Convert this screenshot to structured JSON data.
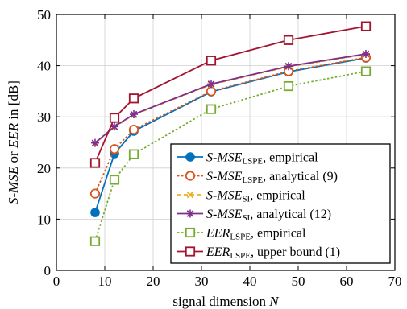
{
  "chart_data": {
    "type": "line",
    "xlabel_text": "signal dimension ",
    "xlabel_var": "N",
    "ylabel_parts": [
      {
        "text": "S-MSE",
        "italic": true
      },
      {
        "text": " or ",
        "italic": false
      },
      {
        "text": "EER",
        "italic": true
      },
      {
        "text": " in [dB]",
        "italic": false
      }
    ],
    "xlim": [
      0,
      70
    ],
    "ylim": [
      0,
      50
    ],
    "xticks": [
      0,
      10,
      20,
      30,
      40,
      50,
      60,
      70
    ],
    "yticks": [
      0,
      10,
      20,
      30,
      40,
      50
    ],
    "grid": true,
    "legend_position": "bottom-right",
    "series": [
      {
        "name_main": "S-MSE",
        "name_sub": "LSPE",
        "name_rest": ", empirical",
        "color": "#0072BD",
        "marker": "circle-filled",
        "dash": "solid",
        "x": [
          8,
          12,
          16,
          32,
          48,
          64
        ],
        "y": [
          11.3,
          22.8,
          27.2,
          34.9,
          38.8,
          41.5
        ]
      },
      {
        "name_main": "S-MSE",
        "name_sub": "LSPE",
        "name_rest": ", analytical (9)",
        "color": "#D95319",
        "marker": "circle-open",
        "dash": "dotted",
        "x": [
          8,
          12,
          16,
          32,
          48,
          64
        ],
        "y": [
          15.0,
          23.7,
          27.5,
          35.0,
          38.9,
          41.6
        ]
      },
      {
        "name_main": "S-MSE",
        "name_sub": "SI",
        "name_rest": ", empirical",
        "color": "#EDB120",
        "marker": "x",
        "dash": "dashed",
        "x": [
          8,
          12,
          16,
          32,
          48,
          64
        ],
        "y": [
          24.8,
          28.0,
          30.4,
          36.3,
          39.8,
          42.2
        ]
      },
      {
        "name_main": "S-MSE",
        "name_sub": "SI",
        "name_rest": ", analytical (12)",
        "color": "#7E2F8E",
        "marker": "star",
        "dash": "solid",
        "x": [
          8,
          12,
          16,
          32,
          48,
          64
        ],
        "y": [
          24.9,
          28.1,
          30.5,
          36.4,
          39.9,
          42.3
        ]
      },
      {
        "name_main": "EER",
        "name_sub": "LSPE",
        "name_rest": ", empirical",
        "color": "#77AC30",
        "marker": "square-open",
        "dash": "dotted",
        "x": [
          8,
          12,
          16,
          32,
          48,
          64
        ],
        "y": [
          5.7,
          17.7,
          22.7,
          31.5,
          36.0,
          38.9
        ]
      },
      {
        "name_main": "EER",
        "name_sub": "LSPE",
        "name_rest": ", upper bound (1)",
        "color": "#A2142F",
        "marker": "square-open",
        "dash": "solid",
        "x": [
          8,
          12,
          16,
          32,
          48,
          64
        ],
        "y": [
          21.0,
          29.8,
          33.6,
          41.0,
          45.0,
          47.7
        ]
      }
    ]
  }
}
